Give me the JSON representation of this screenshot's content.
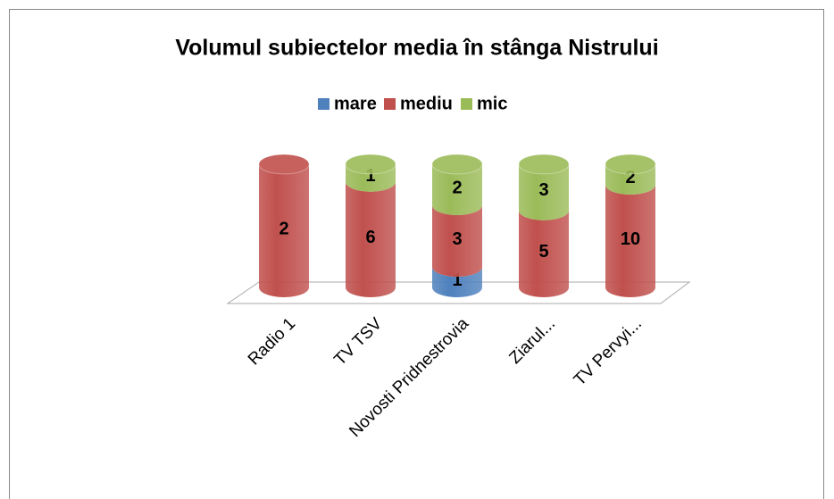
{
  "chart_data": {
    "type": "stacked_percent_cylinder",
    "title": "Volumul subiectelor media în stânga Nistrului",
    "categories": [
      "Radio 1",
      "TV TSV",
      "Novosti Pridnestrovia",
      "Ziarul...",
      "TV Pervyi..."
    ],
    "series": [
      {
        "name": "mare",
        "color": "#4f81bd",
        "values": [
          null,
          null,
          1,
          null,
          null
        ]
      },
      {
        "name": "mediu",
        "color": "#c0504d",
        "values": [
          2,
          6,
          3,
          5,
          10
        ]
      },
      {
        "name": "mic",
        "color": "#9bbb59",
        "values": [
          null,
          1,
          2,
          3,
          2
        ]
      }
    ],
    "legend": "top"
  }
}
